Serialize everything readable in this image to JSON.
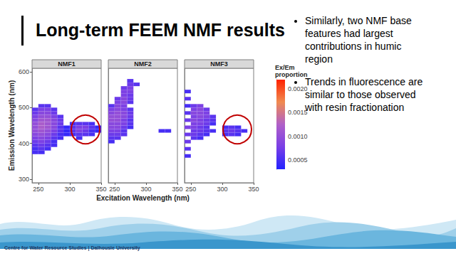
{
  "slide": {
    "title": "Long-term FEEM NMF results",
    "bullets": [
      "Similarly, two NMF base features had largest contributions in humic region",
      "Trends in fluorescence are similar to those observed with resin fractionation"
    ],
    "footer": "Centre for Water Resource Studies | Dalhousie University"
  },
  "color_bar": {
    "title": "Ex/Em proportion",
    "range": [
      0.0003,
      0.0022
    ],
    "ticks": [
      0.0005,
      {
        "value": 0.001,
        "label": "0.0010"
      },
      0.0015,
      {
        "value": 0.002,
        "label": "0.0020"
      }
    ],
    "colors": [
      "#2222ff",
      "#7a3fe6",
      "#b060c8",
      "#f08a50",
      "#ff2200"
    ]
  },
  "chart_data": [
    {
      "type": "heatmap",
      "title": "NMF1",
      "ylabel": "Emission Wavelength (nm)",
      "xlim": [
        240,
        350
      ],
      "xticks": [
        250,
        300,
        350
      ],
      "ylim": [
        290,
        610
      ],
      "yticks": [
        300,
        400,
        500,
        600
      ],
      "grid": false,
      "cell_size": [
        10,
        10
      ],
      "cells": [
        [
          255,
          505,
          0.0006
        ],
        [
          265,
          505,
          0.0006
        ],
        [
          245,
          495,
          0.0006
        ],
        [
          255,
          495,
          0.0008
        ],
        [
          265,
          495,
          0.0008
        ],
        [
          275,
          495,
          0.0006
        ],
        [
          245,
          485,
          0.0007
        ],
        [
          255,
          485,
          0.0009
        ],
        [
          265,
          485,
          0.0009
        ],
        [
          275,
          485,
          0.0007
        ],
        [
          245,
          475,
          0.0008
        ],
        [
          255,
          475,
          0.001
        ],
        [
          265,
          475,
          0.001
        ],
        [
          275,
          475,
          0.0008
        ],
        [
          285,
          475,
          0.0006
        ],
        [
          245,
          465,
          0.0009
        ],
        [
          255,
          465,
          0.0011
        ],
        [
          265,
          465,
          0.0011
        ],
        [
          275,
          465,
          0.0009
        ],
        [
          285,
          465,
          0.0007
        ],
        [
          245,
          455,
          0.001
        ],
        [
          255,
          455,
          0.0012
        ],
        [
          265,
          455,
          0.0011
        ],
        [
          275,
          455,
          0.0009
        ],
        [
          285,
          455,
          0.0007
        ],
        [
          305,
          455,
          0.0005
        ],
        [
          315,
          455,
          0.0006
        ],
        [
          325,
          455,
          0.0006
        ],
        [
          335,
          455,
          0.0005
        ],
        [
          245,
          445,
          0.001
        ],
        [
          255,
          445,
          0.0012
        ],
        [
          265,
          445,
          0.0011
        ],
        [
          275,
          445,
          0.0009
        ],
        [
          285,
          445,
          0.0006
        ],
        [
          295,
          445,
          0.0004
        ],
        [
          305,
          445,
          0.0006
        ],
        [
          315,
          445,
          0.0008
        ],
        [
          325,
          445,
          0.0008
        ],
        [
          335,
          445,
          0.0006
        ],
        [
          345,
          445,
          0.0004
        ],
        [
          245,
          435,
          0.001
        ],
        [
          255,
          435,
          0.0011
        ],
        [
          265,
          435,
          0.001
        ],
        [
          275,
          435,
          0.0008
        ],
        [
          285,
          435,
          0.0006
        ],
        [
          295,
          435,
          0.0004
        ],
        [
          305,
          435,
          0.0006
        ],
        [
          315,
          435,
          0.0008
        ],
        [
          325,
          435,
          0.0007
        ],
        [
          335,
          435,
          0.0005
        ],
        [
          345,
          435,
          0.0004
        ],
        [
          245,
          425,
          0.0009
        ],
        [
          255,
          425,
          0.001
        ],
        [
          265,
          425,
          0.0009
        ],
        [
          275,
          425,
          0.0007
        ],
        [
          285,
          425,
          0.0005
        ],
        [
          295,
          425,
          0.0004
        ],
        [
          305,
          425,
          0.0005
        ],
        [
          315,
          425,
          0.0006
        ],
        [
          325,
          425,
          0.0006
        ],
        [
          335,
          425,
          0.0005
        ],
        [
          245,
          415,
          0.0008
        ],
        [
          255,
          415,
          0.0009
        ],
        [
          265,
          415,
          0.0008
        ],
        [
          275,
          415,
          0.0006
        ],
        [
          285,
          415,
          0.0005
        ],
        [
          315,
          415,
          0.0005
        ],
        [
          245,
          405,
          0.0007
        ],
        [
          255,
          405,
          0.0008
        ],
        [
          265,
          405,
          0.0007
        ],
        [
          275,
          405,
          0.0005
        ],
        [
          245,
          395,
          0.0006
        ],
        [
          255,
          395,
          0.0007
        ],
        [
          265,
          395,
          0.0006
        ],
        [
          275,
          395,
          0.0005
        ],
        [
          245,
          385,
          0.0005
        ],
        [
          255,
          385,
          0.0006
        ],
        [
          265,
          385,
          0.0005
        ],
        [
          245,
          375,
          0.0005
        ],
        [
          255,
          375,
          0.0005
        ]
      ]
    },
    {
      "type": "heatmap",
      "title": "NMF2",
      "xlabel": "Excitation Wavelength (nm)",
      "xlim": [
        240,
        350
      ],
      "xticks": [
        250,
        300,
        350
      ],
      "ylim": [
        290,
        610
      ],
      "yticks": [
        300,
        400,
        500,
        600
      ],
      "grid": false,
      "tick_labels": "x",
      "cell_size": [
        10,
        10
      ],
      "cells": [
        [
          275,
          575,
          0.0006
        ],
        [
          275,
          565,
          0.0007
        ],
        [
          285,
          565,
          0.0006
        ],
        [
          265,
          555,
          0.0007
        ],
        [
          275,
          555,
          0.0008
        ],
        [
          265,
          545,
          0.0008
        ],
        [
          275,
          545,
          0.0008
        ],
        [
          265,
          535,
          0.0008
        ],
        [
          275,
          535,
          0.0007
        ],
        [
          255,
          525,
          0.0007
        ],
        [
          265,
          525,
          0.0009
        ],
        [
          275,
          525,
          0.0007
        ],
        [
          255,
          515,
          0.0008
        ],
        [
          265,
          515,
          0.0009
        ],
        [
          275,
          515,
          0.0006
        ],
        [
          245,
          505,
          0.0006
        ],
        [
          255,
          505,
          0.0009
        ],
        [
          265,
          505,
          0.0008
        ],
        [
          245,
          495,
          0.0008
        ],
        [
          255,
          495,
          0.0009
        ],
        [
          265,
          495,
          0.0008
        ],
        [
          275,
          495,
          0.0006
        ],
        [
          245,
          485,
          0.0009
        ],
        [
          255,
          485,
          0.001
        ],
        [
          265,
          485,
          0.0009
        ],
        [
          275,
          485,
          0.0007
        ],
        [
          245,
          475,
          0.001
        ],
        [
          255,
          475,
          0.001
        ],
        [
          265,
          475,
          0.0009
        ],
        [
          275,
          475,
          0.0007
        ],
        [
          245,
          465,
          0.001
        ],
        [
          255,
          465,
          0.001
        ],
        [
          265,
          465,
          0.0008
        ],
        [
          275,
          465,
          0.0006
        ],
        [
          245,
          455,
          0.0009
        ],
        [
          255,
          455,
          0.0009
        ],
        [
          265,
          455,
          0.0008
        ],
        [
          275,
          455,
          0.0006
        ],
        [
          245,
          445,
          0.0009
        ],
        [
          255,
          445,
          0.0009
        ],
        [
          265,
          445,
          0.0007
        ],
        [
          275,
          445,
          0.0005
        ],
        [
          245,
          435,
          0.0008
        ],
        [
          255,
          435,
          0.0008
        ],
        [
          265,
          435,
          0.0006
        ],
        [
          325,
          435,
          0.0005
        ],
        [
          335,
          435,
          0.0005
        ],
        [
          245,
          425,
          0.0007
        ],
        [
          255,
          425,
          0.0007
        ],
        [
          265,
          425,
          0.0006
        ],
        [
          245,
          415,
          0.0006
        ],
        [
          255,
          415,
          0.0006
        ],
        [
          245,
          405,
          0.0005
        ]
      ]
    },
    {
      "type": "heatmap",
      "title": "NMF3",
      "xlim": [
        240,
        350
      ],
      "xticks": [
        250,
        300,
        350
      ],
      "ylim": [
        290,
        610
      ],
      "yticks": [
        300,
        400,
        500,
        600
      ],
      "grid": false,
      "tick_labels": "x",
      "cell_size": [
        10,
        10
      ],
      "cells": [
        [
          245,
          365,
          0.0005
        ],
        [
          245,
          385,
          0.0006
        ],
        [
          245,
          405,
          0.0007
        ],
        [
          245,
          425,
          0.0007
        ],
        [
          245,
          445,
          0.0008
        ],
        [
          245,
          465,
          0.0007
        ],
        [
          245,
          485,
          0.0006
        ],
        [
          245,
          505,
          0.0005
        ],
        [
          245,
          525,
          0.0006
        ],
        [
          245,
          545,
          0.0005
        ],
        [
          255,
          505,
          0.0007
        ],
        [
          265,
          505,
          0.0008
        ],
        [
          255,
          495,
          0.0008
        ],
        [
          265,
          495,
          0.0009
        ],
        [
          275,
          495,
          0.0007
        ],
        [
          255,
          485,
          0.0009
        ],
        [
          265,
          485,
          0.0009
        ],
        [
          275,
          485,
          0.0008
        ],
        [
          255,
          475,
          0.0008
        ],
        [
          265,
          475,
          0.0009
        ],
        [
          275,
          475,
          0.0008
        ],
        [
          285,
          475,
          0.0006
        ],
        [
          255,
          465,
          0.0009
        ],
        [
          265,
          465,
          0.0008
        ],
        [
          275,
          465,
          0.0007
        ],
        [
          285,
          465,
          0.0006
        ],
        [
          255,
          455,
          0.0008
        ],
        [
          265,
          455,
          0.0008
        ],
        [
          275,
          455,
          0.0007
        ],
        [
          285,
          455,
          0.0005
        ],
        [
          255,
          445,
          0.0008
        ],
        [
          265,
          445,
          0.0007
        ],
        [
          275,
          445,
          0.0006
        ],
        [
          305,
          445,
          0.0005
        ],
        [
          315,
          445,
          0.0006
        ],
        [
          325,
          445,
          0.0005
        ],
        [
          255,
          435,
          0.0007
        ],
        [
          265,
          435,
          0.0007
        ],
        [
          275,
          435,
          0.0006
        ],
        [
          285,
          435,
          0.0005
        ],
        [
          305,
          435,
          0.0006
        ],
        [
          315,
          435,
          0.0007
        ],
        [
          325,
          435,
          0.0006
        ],
        [
          335,
          435,
          0.0005
        ],
        [
          255,
          425,
          0.0007
        ],
        [
          265,
          425,
          0.0006
        ],
        [
          275,
          425,
          0.0005
        ],
        [
          305,
          425,
          0.0005
        ],
        [
          315,
          425,
          0.0006
        ],
        [
          325,
          425,
          0.0005
        ],
        [
          255,
          415,
          0.0006
        ],
        [
          265,
          415,
          0.0005
        ]
      ]
    }
  ]
}
